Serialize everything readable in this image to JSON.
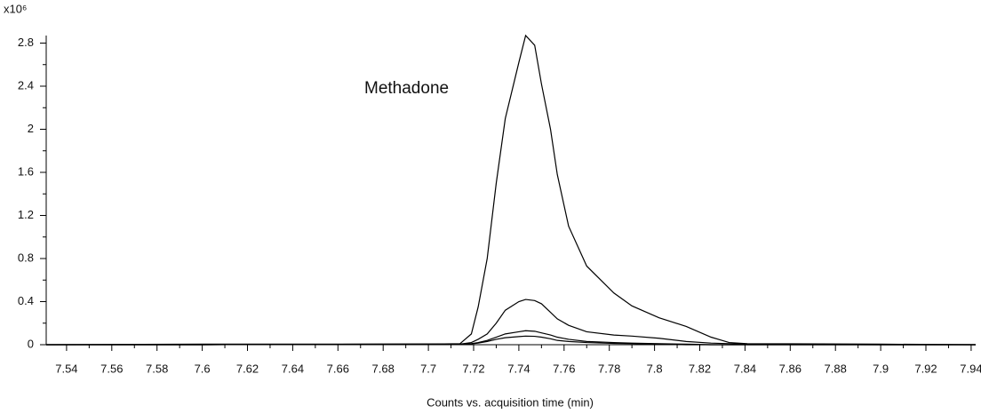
{
  "chart_data": {
    "type": "line",
    "y_multiplier": "x10⁶",
    "annotation": "Methadone",
    "x_label": "Counts vs. acquisition time (min)",
    "x": [
      7.531,
      7.6,
      7.7,
      7.714,
      7.719,
      7.722,
      7.726,
      7.73,
      7.734,
      7.74,
      7.743,
      7.747,
      7.75,
      7.754,
      7.757,
      7.762,
      7.77,
      7.782,
      7.79,
      7.802,
      7.814,
      7.825,
      7.833,
      7.841,
      7.9,
      7.942
    ],
    "series": [
      {
        "color": "#000000",
        "values": [
          0,
          0.005,
          0.005,
          0.01,
          0.1,
          0.35,
          0.8,
          1.5,
          2.1,
          2.62,
          2.87,
          2.78,
          2.42,
          2.0,
          1.58,
          1.1,
          0.73,
          0.48,
          0.36,
          0.25,
          0.17,
          0.07,
          0.02,
          0.01,
          0.005,
          0
        ]
      },
      {
        "color": "#000000",
        "values": [
          0,
          0,
          0.005,
          0.005,
          0.02,
          0.05,
          0.1,
          0.2,
          0.32,
          0.4,
          0.42,
          0.41,
          0.38,
          0.3,
          0.24,
          0.18,
          0.12,
          0.09,
          0.08,
          0.06,
          0.03,
          0.015,
          0.01,
          0.005,
          0,
          0
        ]
      },
      {
        "color": "#000000",
        "values": [
          0,
          0,
          0.005,
          0.005,
          0.01,
          0.02,
          0.04,
          0.07,
          0.1,
          0.12,
          0.13,
          0.125,
          0.11,
          0.09,
          0.07,
          0.05,
          0.03,
          0.02,
          0.015,
          0.01,
          0.005,
          0,
          0,
          0,
          0,
          0
        ]
      },
      {
        "color": "#000000",
        "values": [
          0,
          0,
          0.005,
          0.005,
          0.008,
          0.015,
          0.03,
          0.05,
          0.065,
          0.075,
          0.08,
          0.078,
          0.07,
          0.055,
          0.04,
          0.03,
          0.02,
          0.012,
          0.01,
          0.005,
          0,
          0,
          0,
          0,
          0,
          0
        ]
      }
    ],
    "xlim": [
      7.531,
      7.942
    ],
    "ylim": [
      0,
      2.87
    ],
    "xticks": [
      7.54,
      7.56,
      7.58,
      7.6,
      7.62,
      7.64,
      7.66,
      7.68,
      7.7,
      7.72,
      7.74,
      7.76,
      7.78,
      7.8,
      7.82,
      7.84,
      7.86,
      7.88,
      7.9,
      7.92,
      7.94
    ],
    "xticks_minor": [
      7.55,
      7.57,
      7.59,
      7.61,
      7.63,
      7.65,
      7.67,
      7.69,
      7.71,
      7.73,
      7.75,
      7.77,
      7.79,
      7.81,
      7.83,
      7.85,
      7.87,
      7.89,
      7.91,
      7.93
    ],
    "yticks": [
      0,
      0.4,
      0.8,
      1.2,
      1.6,
      2,
      2.4,
      2.8
    ],
    "yticks_minor": [
      0.2,
      0.6,
      1.0,
      1.4,
      1.8,
      2.2,
      2.6
    ],
    "grid": false
  }
}
